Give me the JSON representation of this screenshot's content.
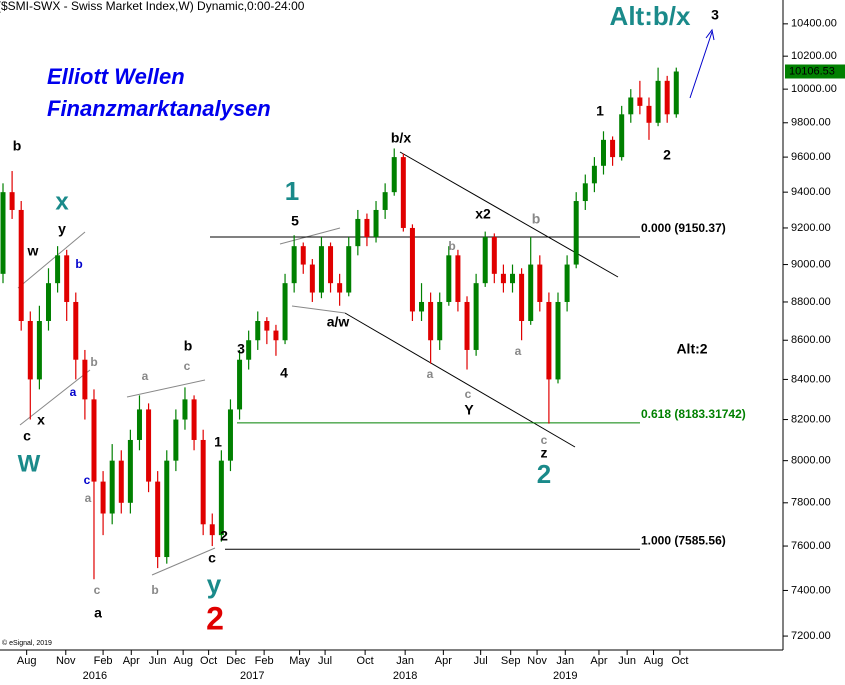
{
  "chart_data": {
    "type": "candlestick",
    "title": "($SMI-SWX - Swiss Market Index,W) Dynamic,0:00-24:00",
    "subtitle_lines": [
      "Elliott Wellen",
      "Finanzmarktanalysen"
    ],
    "copyright": "© eSignal, 2019",
    "log_scale": true,
    "up_color": "#008000",
    "down_color": "#e00000",
    "ylim": [
      7140,
      10550
    ],
    "yticks": [
      {
        "value": 7200,
        "label": "7200.00"
      },
      {
        "value": 7400,
        "label": "7400.00"
      },
      {
        "value": 7600,
        "label": "7600.00"
      },
      {
        "value": 7800,
        "label": "7800.00"
      },
      {
        "value": 8000,
        "label": "8000.00"
      },
      {
        "value": 8200,
        "label": "8200.00"
      },
      {
        "value": 8400,
        "label": "8400.00"
      },
      {
        "value": 8600,
        "label": "8600.00"
      },
      {
        "value": 8800,
        "label": "8800.00"
      },
      {
        "value": 9000,
        "label": "9000.00"
      },
      {
        "value": 9200,
        "label": "9200.00"
      },
      {
        "value": 9400,
        "label": "9400.00"
      },
      {
        "value": 9600,
        "label": "9600.00"
      },
      {
        "value": 9800,
        "label": "9800.00"
      },
      {
        "value": 10000,
        "label": "10000.00"
      },
      {
        "value": 10200,
        "label": "10200.00"
      },
      {
        "value": 10400,
        "label": "10400.00"
      }
    ],
    "xlim": [
      -0.33,
      85.4
    ],
    "xticks": [
      {
        "value": 2.6,
        "label": "Aug"
      },
      {
        "value": 6.9,
        "label": "Nov"
      },
      {
        "value": 11.0,
        "label": "Feb"
      },
      {
        "value": 14.1,
        "label": "Apr"
      },
      {
        "value": 17.0,
        "label": "Jun"
      },
      {
        "value": 19.8,
        "label": "Aug"
      },
      {
        "value": 22.6,
        "label": "Oct"
      },
      {
        "value": 25.6,
        "label": "Dec"
      },
      {
        "value": 28.7,
        "label": "Feb"
      },
      {
        "value": 32.6,
        "label": "May"
      },
      {
        "value": 35.4,
        "label": "Jul"
      },
      {
        "value": 39.8,
        "label": "Oct"
      },
      {
        "value": 44.2,
        "label": "Jan"
      },
      {
        "value": 48.4,
        "label": "Apr"
      },
      {
        "value": 52.5,
        "label": "Jul"
      },
      {
        "value": 55.8,
        "label": "Sep"
      },
      {
        "value": 58.7,
        "label": "Nov"
      },
      {
        "value": 61.8,
        "label": "Jan"
      },
      {
        "value": 65.5,
        "label": "Apr"
      },
      {
        "value": 68.6,
        "label": "Jun"
      },
      {
        "value": 71.5,
        "label": "Aug"
      },
      {
        "value": 74.4,
        "label": "Oct"
      }
    ],
    "year_labels": [
      {
        "value": 10.1,
        "label": "2016"
      },
      {
        "value": 27.4,
        "label": "2017"
      },
      {
        "value": 44.2,
        "label": "2018"
      },
      {
        "value": 61.8,
        "label": "2019"
      }
    ],
    "ohlc": [
      [
        8950,
        9450,
        8900,
        9400
      ],
      [
        9400,
        9520,
        9250,
        9300
      ],
      [
        9300,
        9350,
        8650,
        8700
      ],
      [
        8700,
        8750,
        8200,
        8400
      ],
      [
        8400,
        8780,
        8350,
        8700
      ],
      [
        8700,
        8980,
        8650,
        8900
      ],
      [
        8900,
        9100,
        8850,
        9050
      ],
      [
        9050,
        9080,
        8700,
        8800
      ],
      [
        8800,
        8850,
        8400,
        8500
      ],
      [
        8500,
        8550,
        8200,
        8300
      ],
      [
        8300,
        8350,
        7450,
        7900
      ],
      [
        7900,
        7950,
        7650,
        7750
      ],
      [
        7750,
        8080,
        7700,
        8000
      ],
      [
        8000,
        8050,
        7750,
        7800
      ],
      [
        7800,
        8150,
        7750,
        8100
      ],
      [
        8100,
        8320,
        8050,
        8250
      ],
      [
        8250,
        8280,
        7850,
        7900
      ],
      [
        7900,
        7950,
        7500,
        7550
      ],
      [
        7550,
        8050,
        7520,
        8000
      ],
      [
        8000,
        8250,
        7950,
        8200
      ],
      [
        8200,
        8360,
        8150,
        8300
      ],
      [
        8300,
        8320,
        8050,
        8100
      ],
      [
        8100,
        8150,
        7650,
        7700
      ],
      [
        7700,
        7750,
        7600,
        7650
      ],
      [
        7650,
        8050,
        7620,
        8000
      ],
      [
        8000,
        8300,
        7950,
        8250
      ],
      [
        8250,
        8550,
        8200,
        8500
      ],
      [
        8500,
        8650,
        8450,
        8600
      ],
      [
        8600,
        8750,
        8550,
        8700
      ],
      [
        8700,
        8720,
        8580,
        8650
      ],
      [
        8650,
        8680,
        8520,
        8600
      ],
      [
        8600,
        8950,
        8580,
        8900
      ],
      [
        8900,
        9160,
        8850,
        9100
      ],
      [
        9100,
        9120,
        8950,
        9000
      ],
      [
        9000,
        9030,
        8800,
        8850
      ],
      [
        8850,
        9150,
        8820,
        9100
      ],
      [
        9100,
        9120,
        8850,
        8900
      ],
      [
        8900,
        8950,
        8780,
        8850
      ],
      [
        8850,
        9150,
        8830,
        9100
      ],
      [
        9100,
        9300,
        9050,
        9250
      ],
      [
        9250,
        9280,
        9100,
        9150
      ],
      [
        9150,
        9350,
        9120,
        9300
      ],
      [
        9300,
        9450,
        9250,
        9400
      ],
      [
        9400,
        9650,
        9380,
        9600
      ],
      [
        9600,
        9620,
        9180,
        9200
      ],
      [
        9200,
        9220,
        8700,
        8750
      ],
      [
        8750,
        8900,
        8700,
        8800
      ],
      [
        8800,
        8850,
        8480,
        8600
      ],
      [
        8600,
        8850,
        8550,
        8800
      ],
      [
        8800,
        9100,
        8780,
        9050
      ],
      [
        9050,
        9080,
        8750,
        8800
      ],
      [
        8800,
        8830,
        8450,
        8550
      ],
      [
        8550,
        8950,
        8520,
        8900
      ],
      [
        8900,
        9180,
        8880,
        9150
      ],
      [
        9150,
        9170,
        8900,
        8950
      ],
      [
        8950,
        9000,
        8850,
        8900
      ],
      [
        8900,
        9000,
        8850,
        8950
      ],
      [
        8950,
        8980,
        8600,
        8700
      ],
      [
        8700,
        9150,
        8680,
        9000
      ],
      [
        9000,
        9050,
        8750,
        8800
      ],
      [
        8800,
        8850,
        8180,
        8400
      ],
      [
        8400,
        8850,
        8380,
        8800
      ],
      [
        8800,
        9050,
        8750,
        9000
      ],
      [
        9000,
        9400,
        8980,
        9350
      ],
      [
        9350,
        9500,
        9300,
        9450
      ],
      [
        9450,
        9600,
        9400,
        9550
      ],
      [
        9550,
        9750,
        9500,
        9700
      ],
      [
        9700,
        9720,
        9550,
        9600
      ],
      [
        9600,
        9900,
        9580,
        9850
      ],
      [
        9850,
        10000,
        9800,
        9950
      ],
      [
        9950,
        10050,
        9850,
        9900
      ],
      [
        9900,
        9950,
        9700,
        9800
      ],
      [
        9800,
        10130,
        9780,
        10050
      ],
      [
        10050,
        10080,
        9800,
        9850
      ],
      [
        9850,
        10130,
        9830,
        10106.53
      ]
    ],
    "levels": [
      {
        "value": 9150.37,
        "label": "0.000 (9150.37)",
        "color": "#000000"
      },
      {
        "value": 8183.31742,
        "label": "0.618 (8183.31742)",
        "color": "#008000"
      },
      {
        "value": 7585.56,
        "label": "1.000 (7585.56)",
        "color": "#000000"
      }
    ],
    "annotations": [
      {
        "text": "b",
        "color": "#000000"
      },
      {
        "text": "x",
        "color": "#1a8a8a"
      },
      {
        "text": "y",
        "color": "#000000"
      },
      {
        "text": "w",
        "color": "#000000"
      },
      {
        "text": "b",
        "color": "#0000cc"
      },
      {
        "text": "c",
        "color": "#000000"
      },
      {
        "text": "x",
        "color": "#000000"
      },
      {
        "text": "W",
        "color": "#1a8a8a"
      },
      {
        "text": "b",
        "color": "#888888"
      },
      {
        "text": "a",
        "color": "#0000cc"
      },
      {
        "text": "c",
        "color": "#0000cc"
      },
      {
        "text": "a",
        "color": "#888888"
      },
      {
        "text": "c",
        "color": "#888888"
      },
      {
        "text": "a",
        "color": "#000000"
      },
      {
        "text": "a",
        "color": "#888888"
      },
      {
        "text": "c",
        "color": "#888888"
      },
      {
        "text": "b",
        "color": "#000000"
      },
      {
        "text": "b",
        "color": "#888888"
      },
      {
        "text": "1",
        "color": "#000000"
      },
      {
        "text": "2",
        "color": "#000000"
      },
      {
        "text": "c",
        "color": "#000000"
      },
      {
        "text": "y",
        "color": "#1a8a8a"
      },
      {
        "text": "2",
        "color": "#e00000"
      },
      {
        "text": "3",
        "color": "#000000"
      },
      {
        "text": "4",
        "color": "#000000"
      },
      {
        "text": "5",
        "color": "#000000"
      },
      {
        "text": "1",
        "color": "#1a8a8a"
      },
      {
        "text": "a/w",
        "color": "#000000"
      },
      {
        "text": "b/x",
        "color": "#000000"
      },
      {
        "text": "a",
        "color": "#888888"
      },
      {
        "text": "b",
        "color": "#888888"
      },
      {
        "text": "c",
        "color": "#888888"
      },
      {
        "text": "Y",
        "color": "#000000"
      },
      {
        "text": "x2",
        "color": "#000000"
      },
      {
        "text": "b",
        "color": "#888888"
      },
      {
        "text": "a",
        "color": "#888888"
      },
      {
        "text": "c",
        "color": "#888888"
      },
      {
        "text": "z",
        "color": "#000000"
      },
      {
        "text": "2",
        "color": "#1a8a8a"
      },
      {
        "text": "1",
        "color": "#000000"
      },
      {
        "text": "2",
        "color": "#000000"
      },
      {
        "text": "Alt:2",
        "color": "#000000"
      },
      {
        "text": "3",
        "color": "#000000"
      },
      {
        "text": "Alt:b/x",
        "color": "#1a8a8a"
      }
    ]
  }
}
